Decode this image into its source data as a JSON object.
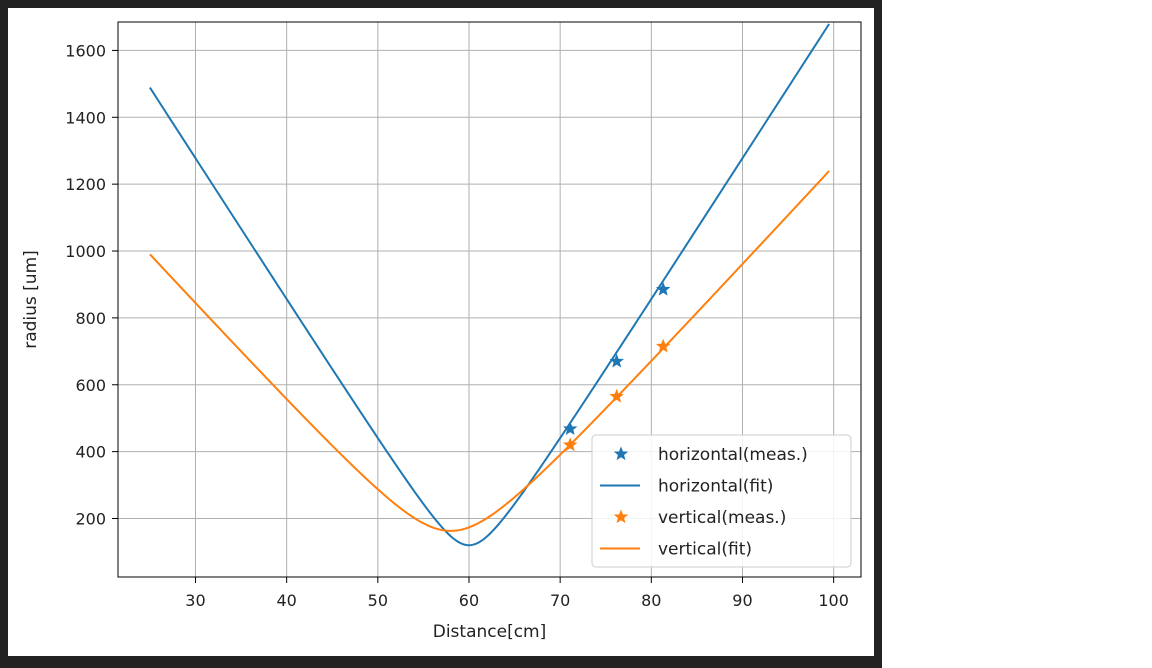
{
  "chart_data": {
    "type": "line",
    "title": "",
    "xlabel": "Distance[cm]",
    "ylabel": "radius [um]",
    "xlim": [
      21.5,
      103
    ],
    "ylim": [
      25,
      1685
    ],
    "xticks": [
      30,
      40,
      50,
      60,
      70,
      80,
      90,
      100
    ],
    "yticks": [
      200,
      400,
      600,
      800,
      1000,
      1200,
      1400,
      1600
    ],
    "grid": true,
    "legend_position": "lower-right",
    "colors": {
      "blue": "#1f77b4",
      "orange": "#ff7f0e"
    },
    "series": [
      {
        "name": "horizontal(meas.)",
        "kind": "markers",
        "marker": "star",
        "color": "#1f77b4",
        "x": [
          71.1,
          76.2,
          81.3
        ],
        "y": [
          468,
          670,
          885
        ]
      },
      {
        "name": "horizontal(fit)",
        "kind": "line",
        "color": "#1f77b4",
        "model": {
          "w0": 120,
          "z0": 60,
          "slope": 42.4
        },
        "x": [
          25,
          30,
          35,
          40,
          45,
          50,
          55,
          57,
          59,
          60,
          61,
          63,
          65,
          70,
          75,
          80,
          85,
          90,
          95,
          99.5
        ],
        "y": [
          1460,
          1250,
          1040,
          835,
          628,
          430,
          235,
          165,
          128,
          120,
          128,
          175,
          240,
          440,
          650,
          860,
          1060,
          1250,
          1455,
          1640
        ]
      },
      {
        "name": "vertical(meas.)",
        "kind": "markers",
        "marker": "star",
        "color": "#ff7f0e",
        "x": [
          71.1,
          76.2,
          81.3
        ],
        "y": [
          420,
          565,
          715
        ]
      },
      {
        "name": "vertical(fit)",
        "kind": "line",
        "color": "#ff7f0e",
        "model": {
          "w0": 163,
          "z0": 58,
          "slope": 29.6
        },
        "x": [
          25,
          30,
          35,
          40,
          45,
          50,
          55,
          57,
          58,
          59,
          61,
          65,
          70,
          75,
          80,
          85,
          90,
          95,
          99.5
        ],
        "y": [
          1030,
          880,
          740,
          585,
          445,
          300,
          195,
          168,
          163,
          165,
          178,
          262,
          380,
          522,
          672,
          830,
          985,
          1130,
          1265
        ]
      }
    ]
  }
}
